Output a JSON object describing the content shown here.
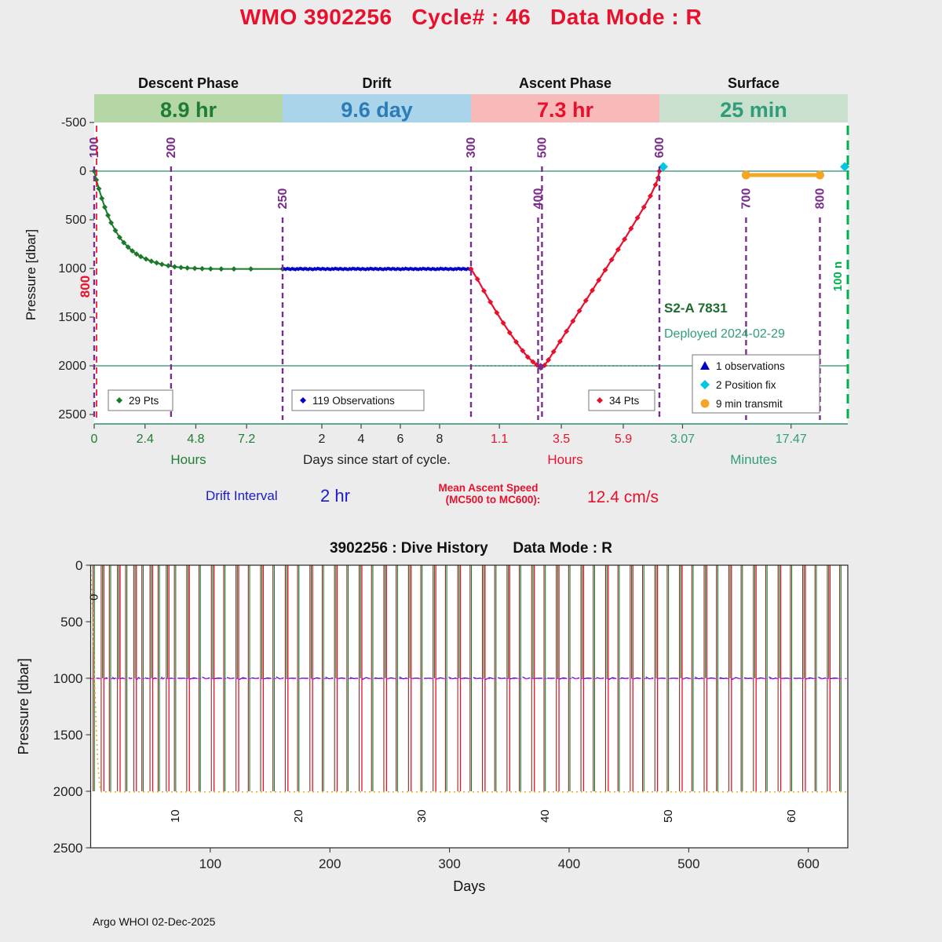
{
  "title": "WMO 3902256   Cycle# : 46   Data Mode : R",
  "footer": "Argo WHOI 02-Dec-2025",
  "colors": {
    "page_bg": "#ececec",
    "plot_bg": "#ffffff",
    "title_red": "#e8112d",
    "descent_band": "#b4d7a5",
    "drift_band": "#a9d4e9",
    "ascent_band": "#f8b9b9",
    "surface_band": "#c9e0cf",
    "descent_green": "#1e7d32",
    "drift_blue": "#2b7cb8",
    "ascent_red": "#e8112d",
    "surface_teal": "#2f9e78",
    "series_green": "#1a7a2a",
    "series_blue": "#0000cc",
    "series_red": "#e8112d",
    "series_orange": "#f5a623",
    "series_darkred": "#8b2e20",
    "purple": "#7b2d8b",
    "teal_line": "#2e8b6e",
    "cyan": "#00c8e0",
    "magenta": "#f015f0",
    "next_cycle_green": "#00b050",
    "annotation_green": "#1e6b2e",
    "stat_blue": "#1a1ad0"
  },
  "chart_data": [
    {
      "id": "cycle-timing",
      "type": "line",
      "ylabel": "Pressure [dbar]",
      "ylim": [
        -500,
        2500
      ],
      "yticks": [
        -500,
        0,
        500,
        1000,
        1500,
        2000,
        2500
      ],
      "reference_pressures": [
        0,
        2000
      ],
      "phases": [
        {
          "label": "Descent Phase",
          "duration": "8.9 hr",
          "axis_label": "Hours",
          "x_max": 8.9,
          "ticks": [
            0,
            2.4,
            4.8,
            7.2
          ],
          "legend": "29 Pts",
          "n_points": 29
        },
        {
          "label": "Drift",
          "duration": "9.6 day",
          "axis_label": "Days since start of cycle.",
          "x_max": 9.6,
          "ticks": [
            2,
            4,
            6,
            8
          ],
          "legend": "119 Observations",
          "n_points": 119
        },
        {
          "label": "Ascent Phase",
          "duration": "7.3 hr",
          "axis_label": "Hours",
          "x_max": 7.3,
          "ticks": [
            1.1,
            3.5,
            5.9
          ],
          "legend": "34 Pts",
          "n_points": 34
        },
        {
          "label": "Surface",
          "duration": "25 min",
          "axis_label": "Minutes",
          "x_max": 25,
          "ticks": [
            3.07,
            17.47
          ]
        }
      ],
      "descent_points": [
        [
          0,
          0
        ],
        [
          0.1,
          90
        ],
        [
          0.22,
          180
        ],
        [
          0.36,
          280
        ],
        [
          0.5,
          370
        ],
        [
          0.65,
          455
        ],
        [
          0.8,
          530
        ],
        [
          1.0,
          610
        ],
        [
          1.2,
          680
        ],
        [
          1.4,
          735
        ],
        [
          1.6,
          780
        ],
        [
          1.8,
          820
        ],
        [
          2.0,
          852
        ],
        [
          2.2,
          878
        ],
        [
          2.45,
          903
        ],
        [
          2.7,
          925
        ],
        [
          2.95,
          943
        ],
        [
          3.2,
          958
        ],
        [
          3.5,
          972
        ],
        [
          3.8,
          983
        ],
        [
          4.1,
          990
        ],
        [
          4.4,
          995
        ],
        [
          4.75,
          999
        ],
        [
          5.1,
          1002
        ],
        [
          5.5,
          1004
        ],
        [
          6.0,
          1005
        ],
        [
          6.6,
          1005
        ],
        [
          7.4,
          1005
        ],
        [
          8.9,
          1005
        ]
      ],
      "drift_line": {
        "count": 119,
        "pressure": 1005,
        "t_start": 0,
        "t_end": 9.6
      },
      "ascent_points": [
        [
          0,
          1005
        ],
        [
          0.25,
          1110
        ],
        [
          0.5,
          1230
        ],
        [
          0.75,
          1345
        ],
        [
          1.0,
          1455
        ],
        [
          1.25,
          1560
        ],
        [
          1.5,
          1660
        ],
        [
          1.75,
          1755
        ],
        [
          2.0,
          1845
        ],
        [
          2.2,
          1910
        ],
        [
          2.4,
          1960
        ],
        [
          2.55,
          1990
        ],
        [
          2.7,
          2010
        ],
        [
          2.85,
          1995
        ],
        [
          3.0,
          1940
        ],
        [
          3.2,
          1855
        ],
        [
          3.45,
          1750
        ],
        [
          3.7,
          1645
        ],
        [
          3.95,
          1540
        ],
        [
          4.2,
          1435
        ],
        [
          4.45,
          1330
        ],
        [
          4.7,
          1225
        ],
        [
          4.95,
          1120
        ],
        [
          5.2,
          1015
        ],
        [
          5.45,
          910
        ],
        [
          5.7,
          805
        ],
        [
          5.95,
          700
        ],
        [
          6.2,
          590
        ],
        [
          6.45,
          480
        ],
        [
          6.7,
          370
        ],
        [
          6.95,
          255
        ],
        [
          7.15,
          140
        ],
        [
          7.25,
          70
        ],
        [
          7.3,
          0
        ]
      ],
      "surface_transmit": {
        "t_start": 11.5,
        "t_end": 21.3,
        "pressure": 40,
        "duration_label": "9 min transmit"
      },
      "position_fixes": [
        {
          "phase": 2,
          "t": 7.45,
          "pressure": -45
        },
        {
          "phase": 3,
          "t": 24.6,
          "pressure": -45
        }
      ],
      "mc_markers": [
        {
          "label": "100",
          "phase": 0,
          "t": 0,
          "row": "top"
        },
        {
          "label": "200",
          "phase": 0,
          "t": 3.63,
          "row": "top"
        },
        {
          "label": "250",
          "phase": 1,
          "t": 0,
          "row": "mid"
        },
        {
          "label": "300",
          "phase": 2,
          "t": 0,
          "row": "top"
        },
        {
          "label": "400",
          "phase": 2,
          "t": 2.6,
          "row": "mid"
        },
        {
          "label": "500",
          "phase": 2,
          "t": 2.75,
          "row": "top"
        },
        {
          "label": "600",
          "phase": 2,
          "t": 7.3,
          "row": "top"
        },
        {
          "label": "700",
          "phase": 3,
          "t": 11.5,
          "row": "mid"
        },
        {
          "label": "800",
          "phase": 3,
          "t": 21.3,
          "row": "mid"
        }
      ],
      "prev_cycle_marker": {
        "label": "800"
      },
      "next_cycle_marker": {
        "label": "100 n"
      },
      "annotations": {
        "float_model": "S2-A 7831",
        "deployed": "Deployed 2024-02-29"
      },
      "legend_box": [
        {
          "label": "1 observations",
          "marker": "triangle"
        },
        {
          "label": "2 Position fix",
          "marker": "diamond"
        },
        {
          "label": "9 min transmit",
          "marker": "circle"
        }
      ],
      "drift_interval": {
        "label": "Drift Interval",
        "value": "2 hr"
      },
      "ascent_speed": {
        "label_line1": "Mean Ascent Speed",
        "label_line2": "(MC500 to MC600):",
        "value": "12.4 cm/s"
      }
    },
    {
      "id": "dive-history",
      "type": "line",
      "title": "3902256 : Dive History      Data Mode : R",
      "xlabel": "Days",
      "ylabel": "Pressure [dbar]",
      "xlim": [
        0,
        633
      ],
      "ylim": [
        0,
        2500
      ],
      "xticks": [
        100,
        200,
        300,
        400,
        500,
        600
      ],
      "yticks": [
        0,
        500,
        1000,
        1500,
        2000,
        2500
      ],
      "park_pressure": 1000,
      "profile_pressure": 2000,
      "cycles_total": 65,
      "first_cycle_day": 2,
      "early_cycle_count": 10,
      "days_per_cycle_early": 6.8,
      "days_per_cycle_late": 10.3,
      "cycle_labels": [
        0,
        10,
        20,
        30,
        40,
        50,
        60
      ],
      "initial_descent": [
        [
          0,
          0
        ],
        [
          1.5,
          400
        ],
        [
          3,
          900
        ],
        [
          4.5,
          1400
        ],
        [
          6,
          1750
        ],
        [
          7.5,
          1950
        ],
        [
          9,
          2005
        ]
      ]
    }
  ]
}
